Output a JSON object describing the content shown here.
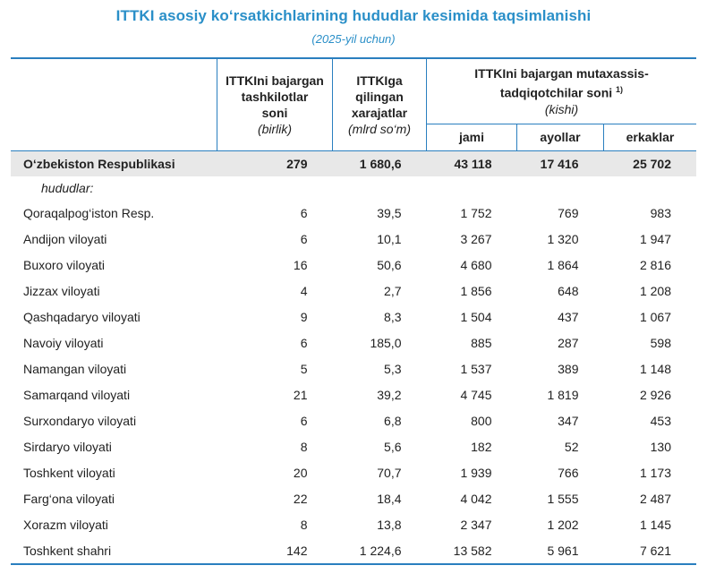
{
  "title": "ITTKI asosiy ko‘rsatkichlarining hududlar kesimida taqsimlanishi",
  "subtitle": "(2025-yil uchun)",
  "headers": {
    "org_line1": "ITTKIni bajargan",
    "org_line2": "tashkilotlar",
    "org_line3": "soni",
    "org_unit": "(birlik)",
    "exp_line1": "ITTKIga",
    "exp_line2": "qilingan",
    "exp_line3": "xarajatlar",
    "exp_unit": "(mlrd so‘m)",
    "res_line1": "ITTKIni bajargan mutaxassis-",
    "res_line2": "tadqiqotchilar soni",
    "res_footnote": "1)",
    "res_unit": "(kishi)",
    "sub_total": "jami",
    "sub_women": "ayollar",
    "sub_men": "erkaklar"
  },
  "total": {
    "name": "O‘zbekiston Respublikasi",
    "orgs": "279",
    "expenses": "1 680,6",
    "total": "43 118",
    "women": "17 416",
    "men": "25 702"
  },
  "section_label": "hududlar:",
  "regions": [
    {
      "name": "Qoraqalpog‘iston Resp.",
      "orgs": "6",
      "expenses": "39,5",
      "total": "1 752",
      "women": "769",
      "men": "983"
    },
    {
      "name": "Andijon viloyati",
      "orgs": "6",
      "expenses": "10,1",
      "total": "3 267",
      "women": "1 320",
      "men": "1 947"
    },
    {
      "name": "Buxoro viloyati",
      "orgs": "16",
      "expenses": "50,6",
      "total": "4 680",
      "women": "1 864",
      "men": "2 816"
    },
    {
      "name": "Jizzax viloyati",
      "orgs": "4",
      "expenses": "2,7",
      "total": "1 856",
      "women": "648",
      "men": "1 208"
    },
    {
      "name": "Qashqadaryo viloyati",
      "orgs": "9",
      "expenses": "8,3",
      "total": "1 504",
      "women": "437",
      "men": "1 067"
    },
    {
      "name": "Navoiy viloyati",
      "orgs": "6",
      "expenses": "185,0",
      "total": "885",
      "women": "287",
      "men": "598"
    },
    {
      "name": "Namangan viloyati",
      "orgs": "5",
      "expenses": "5,3",
      "total": "1 537",
      "women": "389",
      "men": "1 148"
    },
    {
      "name": "Samarqand viloyati",
      "orgs": "21",
      "expenses": "39,2",
      "total": "4 745",
      "women": "1 819",
      "men": "2 926"
    },
    {
      "name": "Surxondaryo viloyati",
      "orgs": "6",
      "expenses": "6,8",
      "total": "800",
      "women": "347",
      "men": "453"
    },
    {
      "name": "Sirdaryo viloyati",
      "orgs": "8",
      "expenses": "5,6",
      "total": "182",
      "women": "52",
      "men": "130"
    },
    {
      "name": "Toshkent viloyati",
      "orgs": "20",
      "expenses": "70,7",
      "total": "1 939",
      "women": "766",
      "men": "1 173"
    },
    {
      "name": "Farg‘ona viloyati",
      "orgs": "22",
      "expenses": "18,4",
      "total": "4 042",
      "women": "1 555",
      "men": "2 487"
    },
    {
      "name": "Xorazm viloyati",
      "orgs": "8",
      "expenses": "13,8",
      "total": "2 347",
      "women": "1 202",
      "men": "1 145"
    },
    {
      "name": "Toshkent shahri",
      "orgs": "142",
      "expenses": "1 224,6",
      "total": "13 582",
      "women": "5 961",
      "men": "7 621"
    }
  ]
}
